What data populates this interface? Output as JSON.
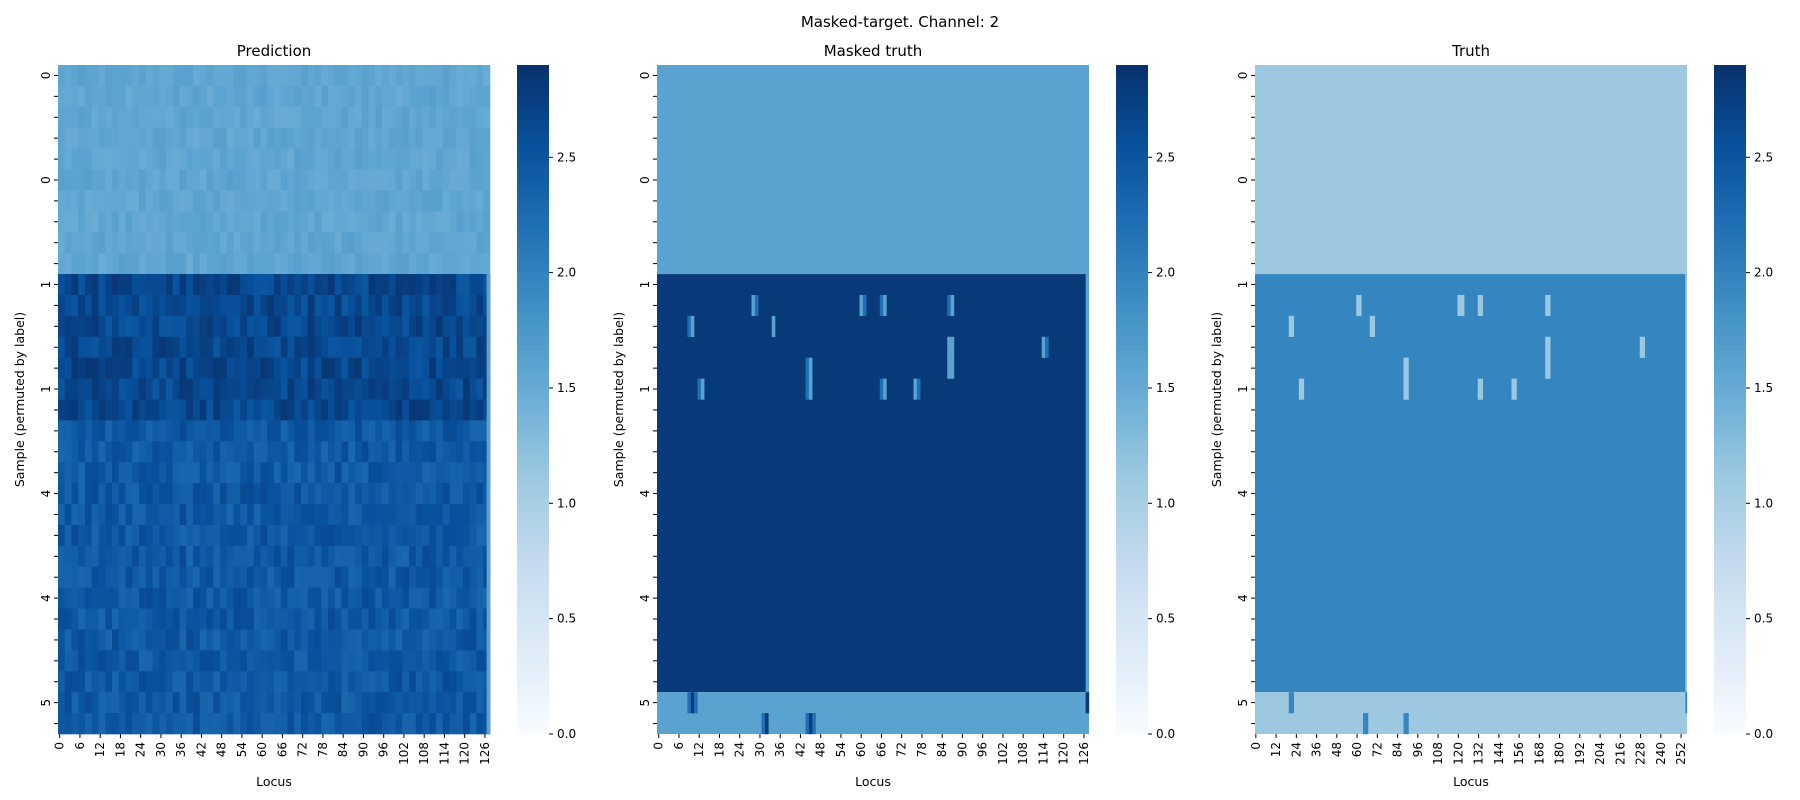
{
  "figure": {
    "suptitle": "Masked-target. Channel: 2",
    "colormap": "Blues"
  },
  "chart_data": [
    {
      "type": "heatmap",
      "title": "Prediction",
      "xlabel": "Locus",
      "ylabel": "Sample (permuted by label)",
      "x_tick_labels": [
        "0",
        "6",
        "12",
        "18",
        "24",
        "30",
        "36",
        "42",
        "48",
        "54",
        "60",
        "66",
        "72",
        "78",
        "84",
        "90",
        "96",
        "102",
        "108",
        "114",
        "120",
        "126"
      ],
      "x_tick_step": 6,
      "n_cols": 128,
      "y_tick_labels": [
        "0",
        "",
        "",
        "",
        "",
        "0",
        "",
        "",
        "",
        "",
        "1",
        "",
        "",
        "",
        "",
        "1",
        "",
        "",
        "",
        "",
        "4",
        "",
        "",
        "",
        "",
        "4",
        "",
        "",
        "",
        "",
        "5",
        ""
      ],
      "n_rows": 32,
      "colorbar": {
        "range": [
          0,
          2.9
        ],
        "ticks": [
          "0.0",
          "0.5",
          "1.0",
          "1.5",
          "2.0",
          "2.5"
        ]
      },
      "regions": [
        {
          "rows": [
            0,
            10
          ],
          "value": 1.55,
          "noise": 0.08
        },
        {
          "rows": [
            10,
            17
          ],
          "value": 2.65,
          "noise": 0.18
        },
        {
          "rows": [
            17,
            32
          ],
          "value": 2.45,
          "noise": 0.16
        }
      ],
      "right_edge_column": {
        "rows": [
          10,
          32
        ],
        "value": 1.6
      }
    },
    {
      "type": "heatmap",
      "title": "Masked truth",
      "xlabel": "Locus",
      "ylabel": "Sample (permuted by label)",
      "x_tick_labels": [
        "0",
        "6",
        "12",
        "18",
        "24",
        "30",
        "36",
        "42",
        "48",
        "54",
        "60",
        "66",
        "72",
        "78",
        "84",
        "90",
        "96",
        "102",
        "108",
        "114",
        "120",
        "126"
      ],
      "x_tick_step": 6,
      "n_cols": 128,
      "y_tick_labels": [
        "0",
        "",
        "",
        "",
        "",
        "0",
        "",
        "",
        "",
        "",
        "1",
        "",
        "",
        "",
        "",
        "1",
        "",
        "",
        "",
        "",
        "4",
        "",
        "",
        "",
        "",
        "4",
        "",
        "",
        "",
        "",
        "5",
        ""
      ],
      "n_rows": 32,
      "colorbar": {
        "range": [
          0,
          2.9
        ],
        "ticks": [
          "0.0",
          "0.5",
          "1.0",
          "1.5",
          "2.0",
          "2.5"
        ]
      },
      "regions": [
        {
          "rows": [
            0,
            10
          ],
          "value": 1.6
        },
        {
          "rows": [
            10,
            30
          ],
          "value": 2.8
        },
        {
          "rows": [
            30,
            32
          ],
          "value": 1.6
        }
      ],
      "right_edge_column": {
        "rows": [
          10,
          32
        ],
        "value": 1.6
      },
      "patches": [
        {
          "row": 11,
          "col": 28,
          "value": 1.6
        },
        {
          "row": 11,
          "col": 29,
          "value": 2.2
        },
        {
          "row": 11,
          "col": 60,
          "value": 1.6
        },
        {
          "row": 11,
          "col": 61,
          "value": 2.2
        },
        {
          "row": 11,
          "col": 66,
          "value": 2.2
        },
        {
          "row": 11,
          "col": 67,
          "value": 1.6
        },
        {
          "row": 11,
          "col": 86,
          "value": 2.2
        },
        {
          "row": 11,
          "col": 87,
          "value": 1.6
        },
        {
          "row": 12,
          "col": 9,
          "value": 2.2
        },
        {
          "row": 12,
          "col": 10,
          "value": 1.6
        },
        {
          "row": 12,
          "col": 34,
          "value": 1.6
        },
        {
          "row": 13,
          "col": 86,
          "value": 1.6
        },
        {
          "row": 13,
          "col": 87,
          "value": 1.6
        },
        {
          "row": 13,
          "col": 114,
          "value": 1.6
        },
        {
          "row": 13,
          "col": 115,
          "value": 2.2
        },
        {
          "row": 14,
          "col": 86,
          "value": 1.6
        },
        {
          "row": 14,
          "col": 87,
          "value": 1.6
        },
        {
          "row": 14,
          "col": 44,
          "value": 2.2
        },
        {
          "row": 14,
          "col": 45,
          "value": 1.6
        },
        {
          "row": 15,
          "col": 12,
          "value": 2.2
        },
        {
          "row": 15,
          "col": 13,
          "value": 1.6
        },
        {
          "row": 15,
          "col": 44,
          "value": 2.2
        },
        {
          "row": 15,
          "col": 45,
          "value": 1.6
        },
        {
          "row": 15,
          "col": 66,
          "value": 2.2
        },
        {
          "row": 15,
          "col": 67,
          "value": 1.6
        },
        {
          "row": 15,
          "col": 76,
          "value": 1.6
        },
        {
          "row": 15,
          "col": 77,
          "value": 2.2
        },
        {
          "row": 30,
          "col": 9,
          "value": 2.2
        },
        {
          "row": 30,
          "col": 10,
          "value": 2.8
        },
        {
          "row": 30,
          "col": 11,
          "value": 2.2
        },
        {
          "row": 30,
          "col": 127,
          "value": 2.8
        },
        {
          "row": 31,
          "col": 31,
          "value": 2.2
        },
        {
          "row": 31,
          "col": 32,
          "value": 2.8
        },
        {
          "row": 31,
          "col": 44,
          "value": 2.2
        },
        {
          "row": 31,
          "col": 45,
          "value": 2.8
        },
        {
          "row": 31,
          "col": 46,
          "value": 2.2
        }
      ]
    },
    {
      "type": "heatmap",
      "title": "Truth",
      "xlabel": "Locus",
      "ylabel": "Sample (permuted by label)",
      "x_tick_labels": [
        "0",
        "12",
        "24",
        "36",
        "48",
        "60",
        "72",
        "84",
        "96",
        "108",
        "120",
        "132",
        "144",
        "156",
        "168",
        "180",
        "192",
        "204",
        "216",
        "228",
        "240",
        "252"
      ],
      "x_tick_step": 12,
      "n_cols": 256,
      "y_tick_labels": [
        "0",
        "",
        "",
        "",
        "",
        "0",
        "",
        "",
        "",
        "",
        "1",
        "",
        "",
        "",
        "",
        "1",
        "",
        "",
        "",
        "",
        "4",
        "",
        "",
        "",
        "",
        "4",
        "",
        "",
        "",
        "",
        "5",
        ""
      ],
      "n_rows": 32,
      "colorbar": {
        "range": [
          0,
          2.9
        ],
        "ticks": [
          "0.0",
          "0.5",
          "1.0",
          "1.5",
          "2.0",
          "2.5"
        ]
      },
      "regions": [
        {
          "rows": [
            0,
            10
          ],
          "value": 1.1
        },
        {
          "rows": [
            10,
            30
          ],
          "value": 1.95
        },
        {
          "rows": [
            30,
            32
          ],
          "value": 1.1
        }
      ],
      "right_edge_column": {
        "rows": [
          10,
          32
        ],
        "value": 1.1
      },
      "patches": [
        {
          "row": 11,
          "col": 60,
          "value": 1.1
        },
        {
          "row": 11,
          "col": 61,
          "value": 1.1
        },
        {
          "row": 11,
          "col": 62,
          "value": 1.1
        },
        {
          "row": 11,
          "col": 120,
          "value": 1.1
        },
        {
          "row": 11,
          "col": 121,
          "value": 1.1
        },
        {
          "row": 11,
          "col": 122,
          "value": 1.1
        },
        {
          "row": 11,
          "col": 123,
          "value": 1.1
        },
        {
          "row": 11,
          "col": 132,
          "value": 1.1
        },
        {
          "row": 11,
          "col": 133,
          "value": 1.1
        },
        {
          "row": 11,
          "col": 134,
          "value": 1.1
        },
        {
          "row": 11,
          "col": 172,
          "value": 1.1
        },
        {
          "row": 11,
          "col": 173,
          "value": 1.1
        },
        {
          "row": 11,
          "col": 174,
          "value": 1.1
        },
        {
          "row": 12,
          "col": 20,
          "value": 1.1
        },
        {
          "row": 12,
          "col": 21,
          "value": 1.1
        },
        {
          "row": 12,
          "col": 22,
          "value": 1.1
        },
        {
          "row": 12,
          "col": 68,
          "value": 1.1
        },
        {
          "row": 12,
          "col": 69,
          "value": 1.1
        },
        {
          "row": 12,
          "col": 70,
          "value": 1.1
        },
        {
          "row": 13,
          "col": 172,
          "value": 1.1
        },
        {
          "row": 13,
          "col": 173,
          "value": 1.1
        },
        {
          "row": 13,
          "col": 174,
          "value": 1.1
        },
        {
          "row": 13,
          "col": 228,
          "value": 1.1
        },
        {
          "row": 13,
          "col": 229,
          "value": 1.1
        },
        {
          "row": 13,
          "col": 230,
          "value": 1.1
        },
        {
          "row": 14,
          "col": 172,
          "value": 1.1
        },
        {
          "row": 14,
          "col": 173,
          "value": 1.1
        },
        {
          "row": 14,
          "col": 174,
          "value": 1.1
        },
        {
          "row": 14,
          "col": 88,
          "value": 1.1
        },
        {
          "row": 14,
          "col": 89,
          "value": 1.1
        },
        {
          "row": 14,
          "col": 90,
          "value": 1.1
        },
        {
          "row": 15,
          "col": 88,
          "value": 1.1
        },
        {
          "row": 15,
          "col": 89,
          "value": 1.1
        },
        {
          "row": 15,
          "col": 90,
          "value": 1.1
        },
        {
          "row": 15,
          "col": 26,
          "value": 1.1
        },
        {
          "row": 15,
          "col": 27,
          "value": 1.1
        },
        {
          "row": 15,
          "col": 28,
          "value": 1.1
        },
        {
          "row": 15,
          "col": 132,
          "value": 1.1
        },
        {
          "row": 15,
          "col": 133,
          "value": 1.1
        },
        {
          "row": 15,
          "col": 134,
          "value": 1.1
        },
        {
          "row": 15,
          "col": 152,
          "value": 1.1
        },
        {
          "row": 15,
          "col": 153,
          "value": 1.1
        },
        {
          "row": 15,
          "col": 154,
          "value": 1.1
        },
        {
          "row": 30,
          "col": 20,
          "value": 1.95
        },
        {
          "row": 30,
          "col": 21,
          "value": 1.95
        },
        {
          "row": 30,
          "col": 22,
          "value": 1.95
        },
        {
          "row": 30,
          "col": 255,
          "value": 1.95
        },
        {
          "row": 31,
          "col": 64,
          "value": 1.95
        },
        {
          "row": 31,
          "col": 65,
          "value": 1.95
        },
        {
          "row": 31,
          "col": 66,
          "value": 1.95
        },
        {
          "row": 31,
          "col": 88,
          "value": 1.95
        },
        {
          "row": 31,
          "col": 89,
          "value": 1.95
        },
        {
          "row": 31,
          "col": 90,
          "value": 1.95
        }
      ]
    }
  ]
}
